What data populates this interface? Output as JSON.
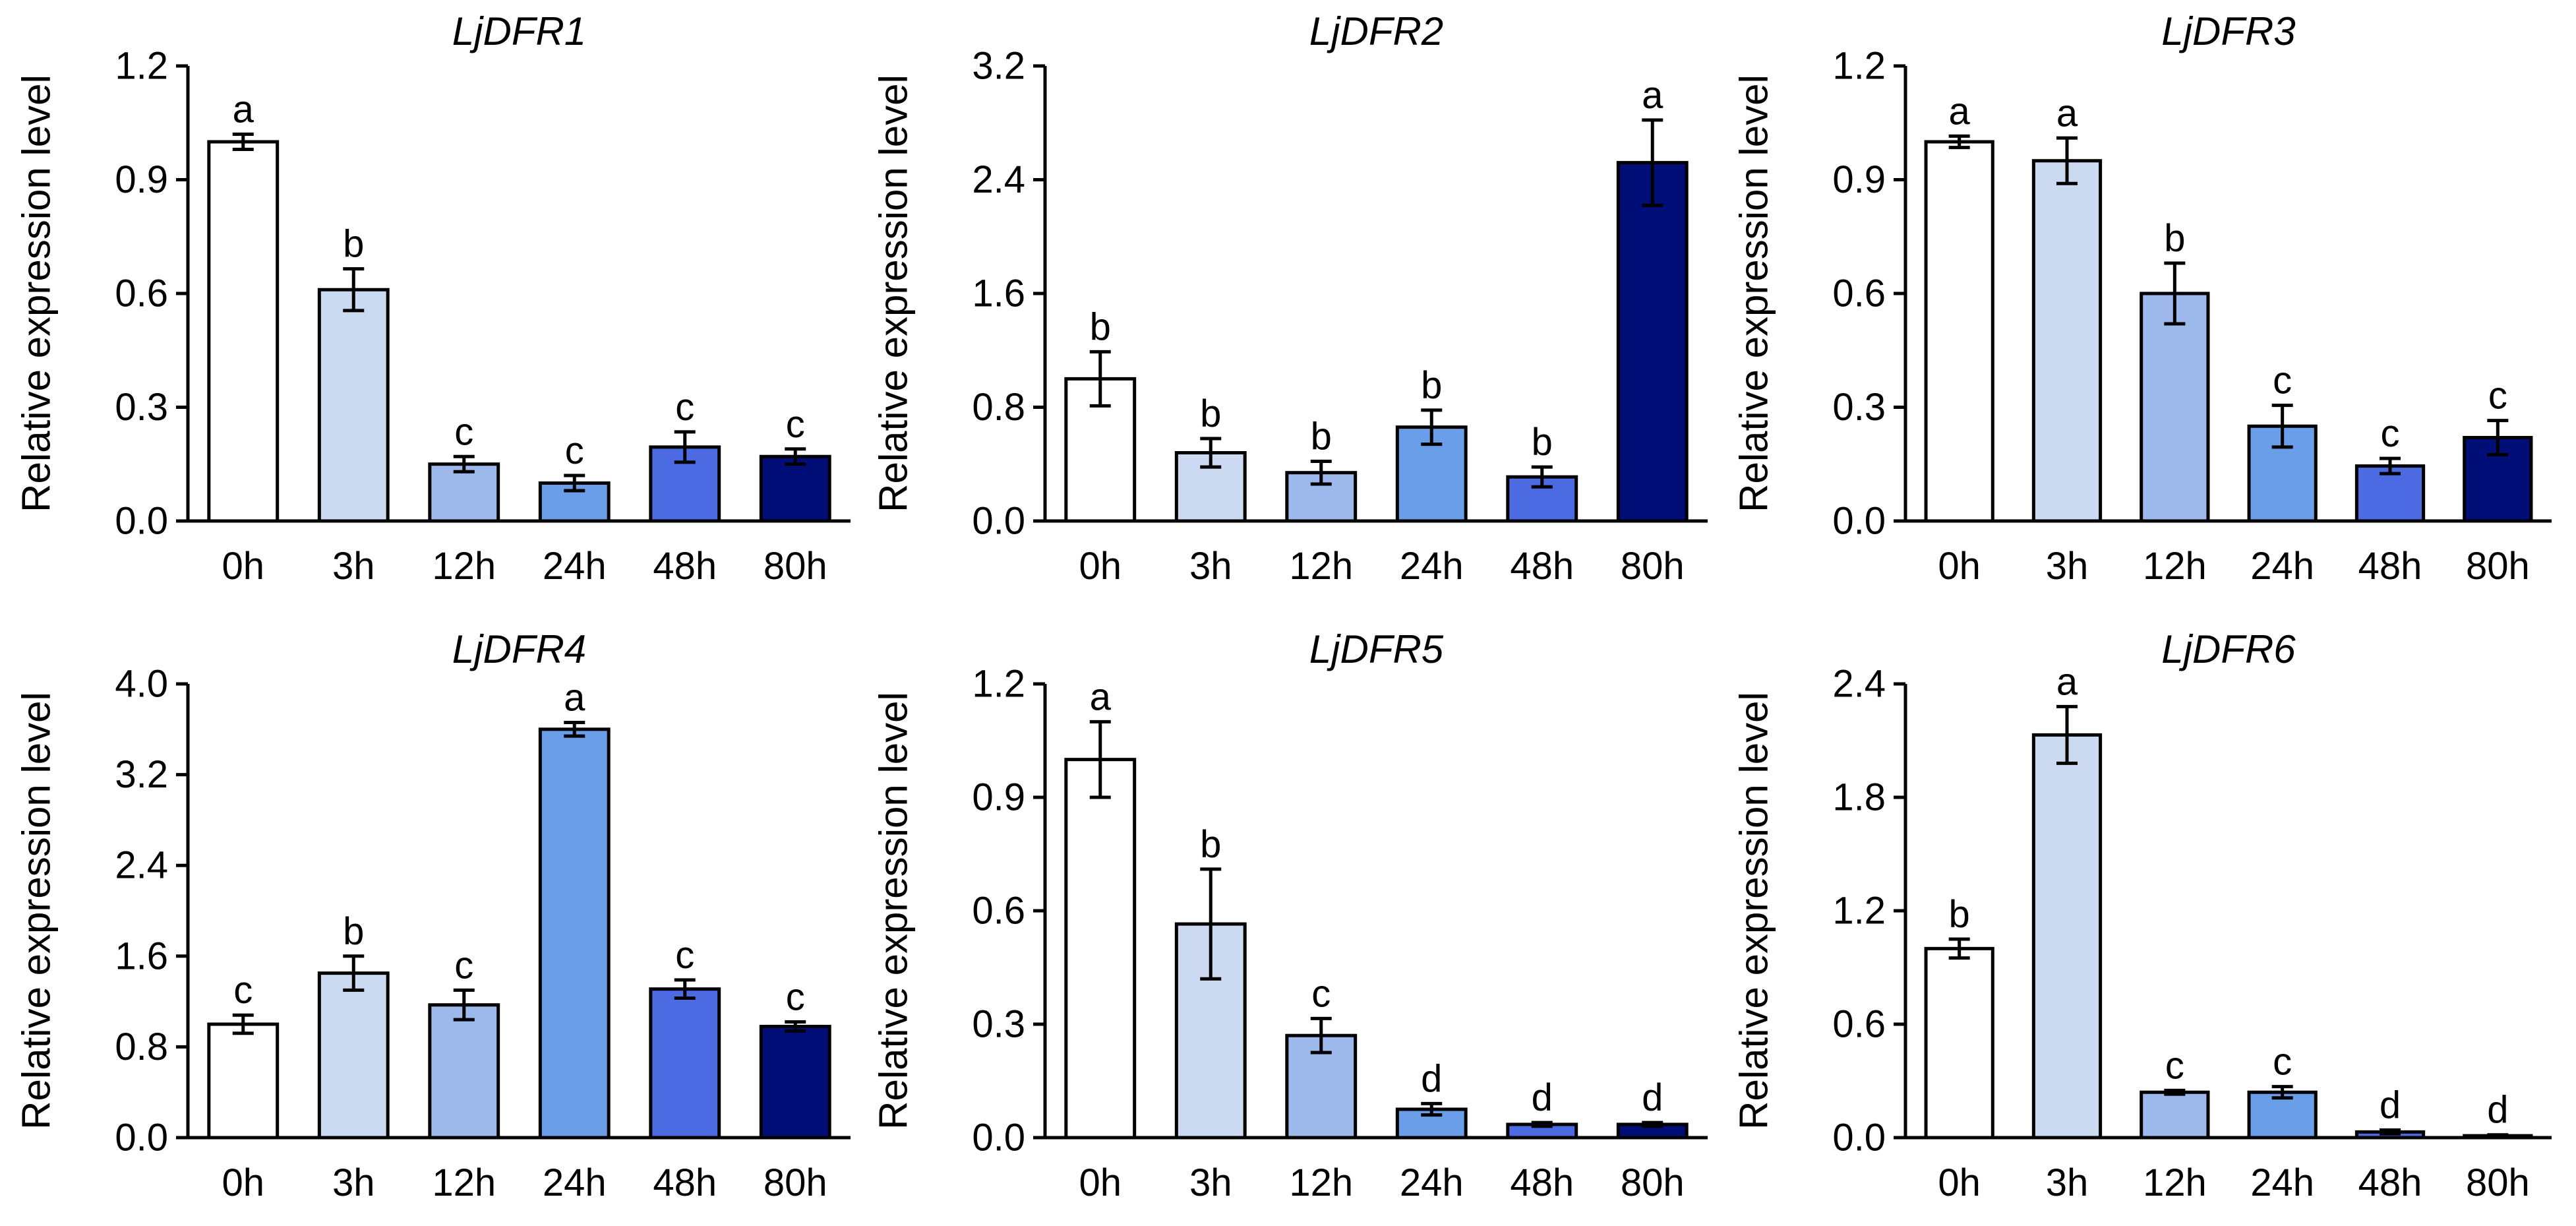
{
  "chart_data": [
    {
      "type": "bar",
      "title": "LjDFR1",
      "ylabel": "Relative expression level",
      "xlabel": "",
      "categories": [
        "0h",
        "3h",
        "12h",
        "24h",
        "48h",
        "80h"
      ],
      "values": [
        1.0,
        0.61,
        0.15,
        0.1,
        0.195,
        0.17
      ],
      "errors": [
        0.02,
        0.055,
        0.02,
        0.02,
        0.04,
        0.02
      ],
      "letters": [
        "a",
        "b",
        "c",
        "c",
        "c",
        "c"
      ],
      "ylim": [
        0,
        1.2
      ],
      "yticks": [
        "0.0",
        "0.3",
        "0.6",
        "0.9",
        "1.2"
      ]
    },
    {
      "type": "bar",
      "title": "LjDFR2",
      "ylabel": "Relative expression level",
      "xlabel": "",
      "categories": [
        "0h",
        "3h",
        "12h",
        "24h",
        "48h",
        "80h"
      ],
      "values": [
        1.0,
        0.48,
        0.34,
        0.66,
        0.31,
        2.52
      ],
      "errors": [
        0.19,
        0.1,
        0.08,
        0.12,
        0.07,
        0.3
      ],
      "letters": [
        "b",
        "b",
        "b",
        "b",
        "b",
        "a"
      ],
      "ylim": [
        0,
        3.2
      ],
      "yticks": [
        "0.0",
        "0.8",
        "1.6",
        "2.4",
        "3.2"
      ]
    },
    {
      "type": "bar",
      "title": "LjDFR3",
      "ylabel": "Relative expression level",
      "xlabel": "",
      "categories": [
        "0h",
        "3h",
        "12h",
        "24h",
        "48h",
        "80h"
      ],
      "values": [
        1.0,
        0.95,
        0.6,
        0.25,
        0.145,
        0.22
      ],
      "errors": [
        0.015,
        0.06,
        0.08,
        0.055,
        0.02,
        0.045
      ],
      "letters": [
        "a",
        "a",
        "b",
        "c",
        "c",
        "c"
      ],
      "ylim": [
        0,
        1.2
      ],
      "yticks": [
        "0.0",
        "0.3",
        "0.6",
        "0.9",
        "1.2"
      ]
    },
    {
      "type": "bar",
      "title": "LjDFR4",
      "ylabel": "Relative expression level",
      "xlabel": "",
      "categories": [
        "0h",
        "3h",
        "12h",
        "24h",
        "48h",
        "80h"
      ],
      "values": [
        1.0,
        1.45,
        1.17,
        3.6,
        1.31,
        0.98
      ],
      "errors": [
        0.08,
        0.15,
        0.13,
        0.06,
        0.08,
        0.04
      ],
      "letters": [
        "c",
        "b",
        "c",
        "a",
        "c",
        "c"
      ],
      "ylim": [
        0,
        4.0
      ],
      "yticks": [
        "0.0",
        "0.8",
        "1.6",
        "2.4",
        "3.2",
        "4.0"
      ]
    },
    {
      "type": "bar",
      "title": "LjDFR5",
      "ylabel": "Relative expression level",
      "xlabel": "",
      "categories": [
        "0h",
        "3h",
        "12h",
        "24h",
        "48h",
        "80h"
      ],
      "values": [
        1.0,
        0.565,
        0.27,
        0.075,
        0.035,
        0.035
      ],
      "errors": [
        0.1,
        0.145,
        0.045,
        0.015,
        0.005,
        0.005
      ],
      "letters": [
        "a",
        "b",
        "c",
        "d",
        "d",
        "d"
      ],
      "ylim": [
        0,
        1.2
      ],
      "yticks": [
        "0.0",
        "0.3",
        "0.6",
        "0.9",
        "1.2"
      ]
    },
    {
      "type": "bar",
      "title": "LjDFR6",
      "ylabel": "Relative expression level",
      "xlabel": "",
      "categories": [
        "0h",
        "3h",
        "12h",
        "24h",
        "48h",
        "80h"
      ],
      "values": [
        1.0,
        2.13,
        0.24,
        0.24,
        0.03,
        0.01
      ],
      "errors": [
        0.05,
        0.15,
        0.01,
        0.03,
        0.01,
        0.005
      ],
      "letters": [
        "b",
        "a",
        "c",
        "c",
        "d",
        "d"
      ],
      "ylim": [
        0,
        2.4
      ],
      "yticks": [
        "0.0",
        "0.6",
        "1.2",
        "1.8",
        "2.4"
      ]
    }
  ],
  "colors": {
    "bar_fills": [
      "#ffffff",
      "#cbdaf0",
      "#9db9ec",
      "#6a9ee8",
      "#4c6ae2",
      "#010e78"
    ],
    "axis": "#000000"
  }
}
